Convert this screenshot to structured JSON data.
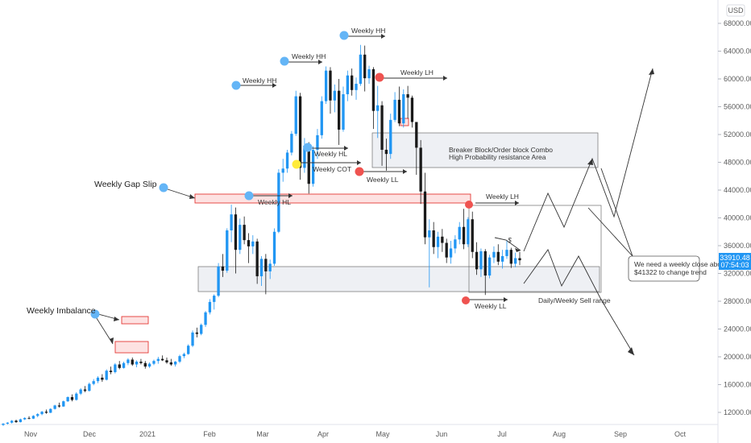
{
  "chart_data": {
    "type": "candlestick",
    "currency": "USD",
    "last_price": "33910.48",
    "countdown": "07:54:03",
    "y_ticks": [
      "68000.00",
      "64000.00",
      "60000.00",
      "56000.00",
      "52000.00",
      "48000.00",
      "44000.00",
      "40000.00",
      "36000.00",
      "32000.00",
      "28000.00",
      "24000.00",
      "20000.00",
      "16000.00",
      "12000.00"
    ],
    "x_ticks": [
      "Nov",
      "Dec",
      "2021",
      "Feb",
      "Mar",
      "Apr",
      "May",
      "Jun",
      "Jul",
      "Aug",
      "Sep",
      "Oct"
    ],
    "ylim": [
      9000,
      71000
    ],
    "series": [
      {
        "values": [
          [
            10200,
            10450,
            10050,
            10380
          ],
          [
            10380,
            10600,
            10250,
            10520
          ],
          [
            10520,
            10900,
            10400,
            10800
          ],
          [
            10800,
            10950,
            10500,
            10600
          ],
          [
            10600,
            11100,
            10550,
            11000
          ],
          [
            11000,
            11300,
            10900,
            11200
          ],
          [
            11200,
            11450,
            11000,
            11100
          ],
          [
            11100,
            11600,
            11050,
            11500
          ],
          [
            11500,
            11900,
            11300,
            11750
          ],
          [
            11750,
            12200,
            11600,
            12100
          ],
          [
            12100,
            12400,
            11800,
            11950
          ],
          [
            11950,
            12600,
            11900,
            12500
          ],
          [
            12500,
            13100,
            12400,
            13000
          ],
          [
            13000,
            13400,
            12700,
            12850
          ],
          [
            12850,
            13700,
            12800,
            13600
          ],
          [
            13600,
            14300,
            13500,
            14200
          ],
          [
            14200,
            14600,
            13600,
            13800
          ],
          [
            13800,
            14900,
            13700,
            14700
          ],
          [
            14700,
            15500,
            14500,
            15300
          ],
          [
            15300,
            15800,
            14900,
            15100
          ],
          [
            15100,
            16300,
            15000,
            16100
          ],
          [
            16100,
            16800,
            15900,
            16500
          ],
          [
            16500,
            17200,
            16200,
            17000
          ],
          [
            17000,
            17500,
            16400,
            16700
          ],
          [
            16700,
            18200,
            16600,
            18000
          ],
          [
            18000,
            18600,
            17500,
            17800
          ],
          [
            17800,
            19100,
            17600,
            18900
          ],
          [
            18900,
            19400,
            18200,
            18400
          ],
          [
            18400,
            19300,
            18300,
            19100
          ],
          [
            19100,
            19800,
            18800,
            19600
          ],
          [
            19600,
            19900,
            18700,
            18900
          ],
          [
            18900,
            19500,
            18500,
            19300
          ],
          [
            19300,
            19700,
            18900,
            19100
          ],
          [
            19100,
            19400,
            18300,
            18600
          ],
          [
            18600,
            19200,
            18400,
            19000
          ],
          [
            19000,
            19600,
            18800,
            19400
          ],
          [
            19400,
            20000,
            19000,
            19700
          ],
          [
            19700,
            20200,
            19400,
            19500
          ],
          [
            19500,
            19900,
            19000,
            19200
          ],
          [
            19200,
            19700,
            18700,
            18900
          ],
          [
            18900,
            19400,
            18600,
            19300
          ],
          [
            19300,
            20300,
            19100,
            20100
          ],
          [
            20100,
            20600,
            19800,
            20400
          ],
          [
            20400,
            21800,
            20300,
            21600
          ],
          [
            21600,
            23800,
            21400,
            23500
          ],
          [
            23500,
            24200,
            22800,
            23300
          ],
          [
            23300,
            24800,
            23100,
            24600
          ],
          [
            24600,
            26600,
            24300,
            26400
          ],
          [
            26400,
            28300,
            26100,
            27900
          ],
          [
            27900,
            29000,
            26800,
            28800
          ],
          [
            28800,
            33500,
            28600,
            33000
          ],
          [
            33000,
            34800,
            31500,
            32400
          ],
          [
            32400,
            38500,
            32100,
            38200
          ],
          [
            38200,
            41900,
            36500,
            40500
          ],
          [
            40500,
            41500,
            32000,
            35400
          ],
          [
            35400,
            39900,
            34800,
            39000
          ],
          [
            39000,
            40200,
            36200,
            36800
          ],
          [
            36800,
            37800,
            33500,
            35900
          ],
          [
            35900,
            37500,
            34800,
            36600
          ],
          [
            36600,
            37000,
            30500,
            31600
          ],
          [
            31600,
            34500,
            30200,
            34100
          ],
          [
            34100,
            34800,
            29000,
            32300
          ],
          [
            32300,
            34000,
            31200,
            33400
          ],
          [
            33400,
            38500,
            33100,
            38000
          ],
          [
            38000,
            47000,
            37800,
            46500
          ],
          [
            46500,
            48500,
            45200,
            47100
          ],
          [
            47100,
            49800,
            46500,
            49400
          ],
          [
            49400,
            52500,
            49000,
            52100
          ],
          [
            52100,
            58300,
            51800,
            57500
          ],
          [
            57500,
            58000,
            45500,
            47200
          ],
          [
            47200,
            51500,
            46500,
            50400
          ],
          [
            50400,
            50900,
            43500,
            44900
          ],
          [
            44900,
            50300,
            44500,
            49800
          ],
          [
            49800,
            52800,
            48500,
            51900
          ],
          [
            51900,
            57500,
            51400,
            56800
          ],
          [
            56800,
            61800,
            56400,
            61200
          ],
          [
            61200,
            61700,
            55000,
            56900
          ],
          [
            56900,
            59200,
            55200,
            58300
          ],
          [
            58300,
            60000,
            50500,
            52700
          ],
          [
            52700,
            58900,
            52400,
            57800
          ],
          [
            57800,
            61200,
            56800,
            60500
          ],
          [
            60500,
            61500,
            57600,
            58400
          ],
          [
            58400,
            60200,
            57000,
            59300
          ],
          [
            59300,
            64900,
            59000,
            63500
          ],
          [
            63500,
            64800,
            58200,
            60100
          ],
          [
            60100,
            61900,
            59300,
            61400
          ],
          [
            61400,
            61700,
            52800,
            55400
          ],
          [
            55400,
            59000,
            51500,
            56200
          ],
          [
            56200,
            56800,
            47500,
            49800
          ],
          [
            49800,
            51400,
            46800,
            49200
          ],
          [
            49200,
            55000,
            48500,
            54100
          ],
          [
            54100,
            58100,
            53800,
            57000
          ],
          [
            57000,
            58900,
            53200,
            53600
          ],
          [
            53600,
            58500,
            53000,
            57800
          ],
          [
            57800,
            59000,
            54300,
            57300
          ],
          [
            57300,
            57600,
            53000,
            53800
          ],
          [
            53800,
            51600,
            46200,
            50100
          ],
          [
            50100,
            51200,
            42000,
            43800
          ],
          [
            43800,
            46500,
            36200,
            37200
          ],
          [
            37200,
            39800,
            30000,
            38200
          ],
          [
            38200,
            39400,
            34800,
            35800
          ],
          [
            35800,
            38000,
            34200,
            37300
          ],
          [
            37300,
            38400,
            35100,
            36400
          ],
          [
            36400,
            37000,
            33500,
            34300
          ],
          [
            34300,
            36700,
            33400,
            35600
          ],
          [
            35600,
            37500,
            34900,
            36900
          ],
          [
            36900,
            39400,
            36200,
            38700
          ],
          [
            38700,
            41300,
            35500,
            36200
          ],
          [
            36200,
            40100,
            35800,
            39800
          ],
          [
            39800,
            40900,
            34200,
            35100
          ],
          [
            35100,
            36500,
            31800,
            32600
          ],
          [
            32600,
            35600,
            31500,
            35200
          ],
          [
            35200,
            35500,
            28900,
            31700
          ],
          [
            31700,
            34700,
            31300,
            34300
          ],
          [
            34300,
            35900,
            33500,
            35100
          ],
          [
            35100,
            36200,
            33200,
            33700
          ],
          [
            33700,
            35400,
            32700,
            34500
          ],
          [
            34500,
            36800,
            34100,
            35400
          ],
          [
            35400,
            35700,
            32800,
            33400
          ],
          [
            33400,
            35000,
            32900,
            34200
          ],
          [
            34200,
            35100,
            33200,
            33900
          ]
        ]
      }
    ],
    "annotations": {
      "weekly_gap_slip": "Weekly Gap Slip",
      "weekly_imbalance": "Weekly Imbalance",
      "weekly_hh_1": "Weekly HH",
      "weekly_hh_2": "Weekly HH",
      "weekly_hh_3": "Weekly HH",
      "weekly_lh_1": "Weekly LH",
      "weekly_lh_2": "Weekly LH",
      "weekly_hl_1": "Weekly HL",
      "weekly_hl_2": "Weekly HL",
      "weekly_cot": "Weekly COT",
      "weekly_ll_1": "Weekly LL",
      "weekly_ll_2": "Weekly LL",
      "breaker_line1": "Breaker Block/Order block Combo",
      "breaker_line2": "High Probability resistance Area",
      "sell_range": "Daily/Weekly Sell range",
      "dollar_sign": "$",
      "note_line1": "We need a weekly close above",
      "note_line2": "$41322 to change trend"
    },
    "colors": {
      "up": "#2196f3",
      "down": "#1a1a1a",
      "marker_blue": "#64b5f6",
      "marker_red": "#ef5350",
      "marker_yellow": "#ffeb3b",
      "zone_red_fill": "#fde2e2",
      "zone_red_stroke": "#e53935",
      "zone_grey_fill": "#eef0f4",
      "label_bg": "#2196f3"
    }
  }
}
